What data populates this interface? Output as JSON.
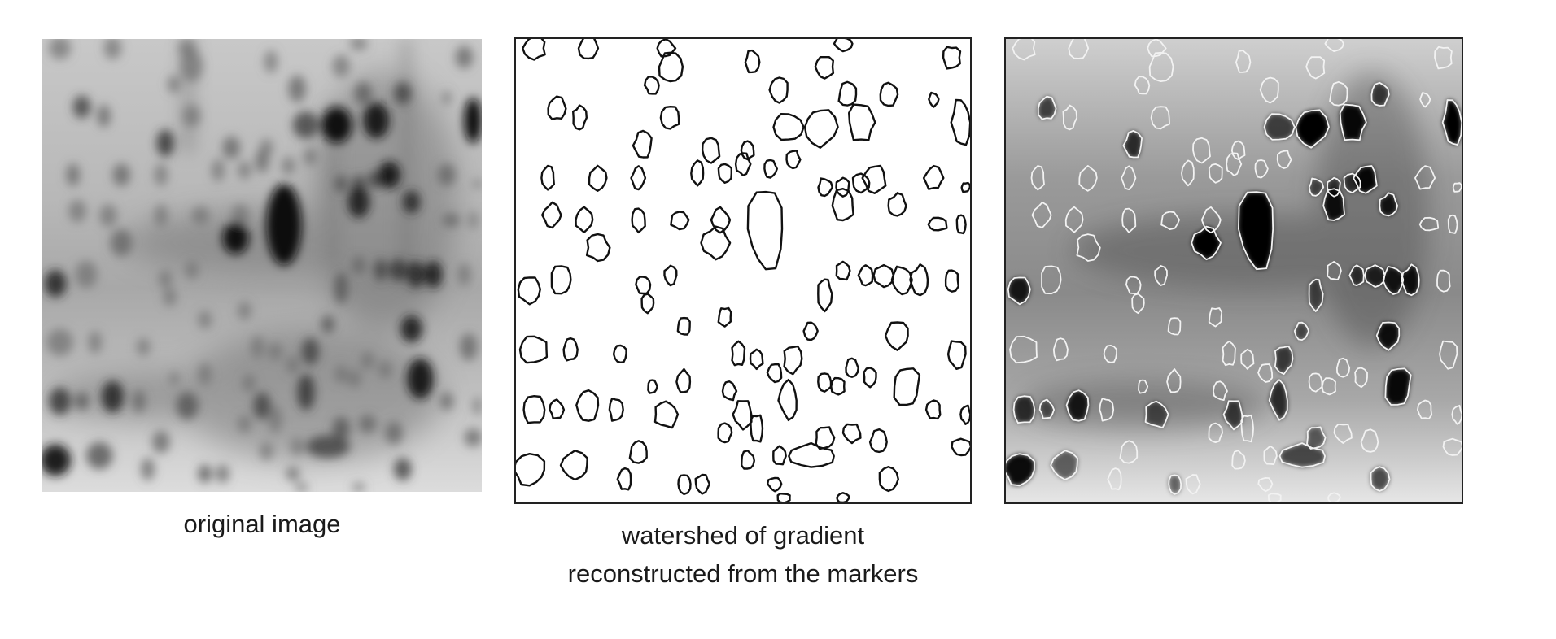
{
  "panels": {
    "original": {
      "caption": "original image"
    },
    "watershed": {
      "caption_line1": "watershed of gradient",
      "caption_line2": "reconstructed from the markers"
    },
    "overlay": {
      "caption": ""
    }
  },
  "colors": {
    "background": "#ffffff",
    "gel_background": "#bdbdbd",
    "spot_dark": "#0f0f0f",
    "contour_black": "#111111",
    "contour_white": "#ffffff",
    "frame": "#222222"
  }
}
